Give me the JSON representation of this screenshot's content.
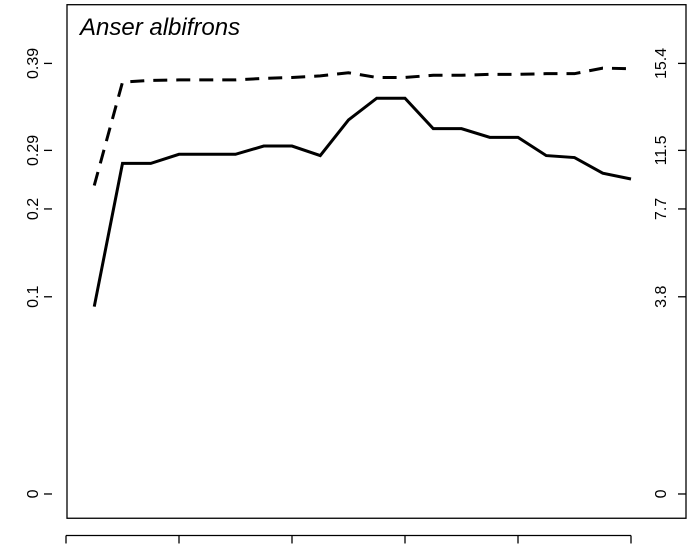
{
  "chart_data": {
    "type": "line",
    "title": "Anser albifrons",
    "x": [
      1,
      2,
      3,
      4,
      5,
      6,
      7,
      8,
      9,
      10,
      11,
      12,
      13,
      14,
      15,
      16,
      17,
      18,
      19,
      20
    ],
    "xlim": [
      0,
      20
    ],
    "xticks": [
      0,
      4,
      8,
      12,
      16,
      20
    ],
    "ylim": [
      0,
      0.39
    ],
    "yticks": [
      0,
      0.1,
      0.2,
      0.29,
      0.39
    ],
    "y2lim": [
      0,
      15.4
    ],
    "y2ticks": [
      0,
      3.8,
      7.7,
      11.5,
      15.4
    ],
    "series": [
      {
        "color": "#000000",
        "dash": "solid",
        "values": [
          0.095,
          0.27,
          0.27,
          0.284,
          0.284,
          0.284,
          0.295,
          0.295,
          0.282,
          0.325,
          0.35,
          0.35,
          0.315,
          0.315,
          0.305,
          0.305,
          0.282,
          0.279,
          0.255,
          0.246
        ]
      },
      {
        "color": "#000000",
        "dash": "dashed",
        "axis": "y2",
        "values": [
          9.22,
          14.56,
          14.64,
          14.66,
          14.66,
          14.66,
          14.73,
          14.77,
          14.84,
          14.98,
          14.77,
          14.77,
          14.87,
          14.87,
          14.91,
          14.91,
          14.94,
          14.94,
          15.19,
          15.16
        ]
      }
    ]
  }
}
